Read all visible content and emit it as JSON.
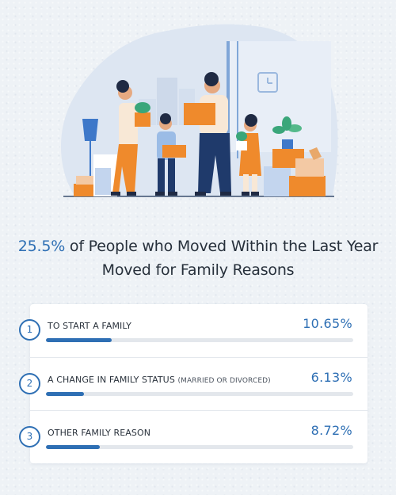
{
  "headline": {
    "highlight": "25.5%",
    "line1_rest": " of People who Moved Within the Last Year",
    "line2": "Moved for Family Reasons"
  },
  "chart_data": {
    "type": "bar",
    "orientation": "horizontal",
    "categories": [
      "TO START A FAMILY",
      "A CHANGE IN FAMILY STATUS",
      "OTHER FAMILY REASON"
    ],
    "values": [
      10.65,
      6.13,
      8.72
    ],
    "unit": "%",
    "ylim": [
      0,
      50
    ]
  },
  "rows": [
    {
      "number": "1",
      "label": "TO START A FAMILY",
      "note": "",
      "value_text": "10.65%"
    },
    {
      "number": "2",
      "label": "A CHANGE IN FAMILY STATUS",
      "note": "(MARRIED OR DIVORCED)",
      "value_text": "6.13%"
    },
    {
      "number": "3",
      "label": "OTHER FAMILY REASON",
      "note": "",
      "value_text": "8.72%"
    }
  ],
  "colors": {
    "accent": "#2e6fb4",
    "track": "#e3e7ec",
    "text": "#27303b",
    "background": "#eef2f6",
    "orange": "#ef8a2c"
  }
}
